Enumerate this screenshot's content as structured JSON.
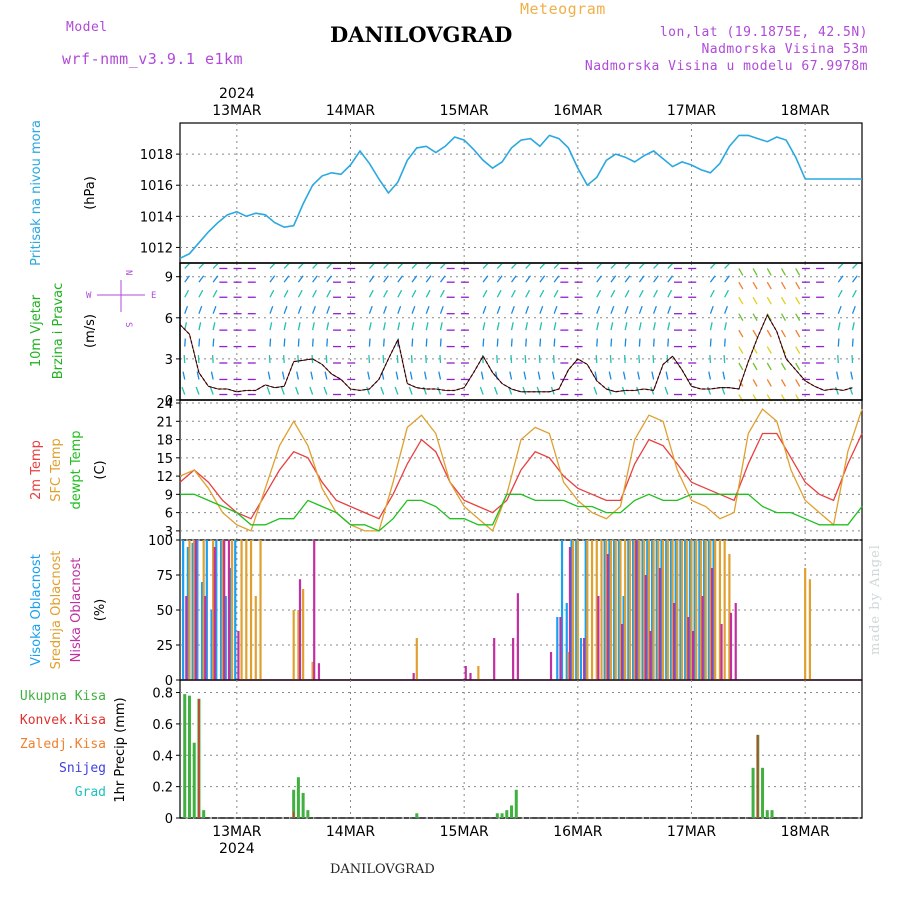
{
  "header": {
    "model_label": "Model",
    "model_name": "wrf-nmm_v3.9.1 e1km",
    "product": "Meteogram",
    "station": "DANILOVGRAD",
    "lonlat": "lon,lat (19.1875E, 42.5N)",
    "elevation": "Nadmorska Visina 53m",
    "model_elevation": "Nadmorska Visina u modelu 67.9978m"
  },
  "footer": {
    "station": "DANILOVGRAD",
    "signature": "made by Angel"
  },
  "colors": {
    "pressure": "#2aa8e0",
    "wind_speed_model": "#e03030",
    "wind_speed_alt": "#000000",
    "temp2m": "#e84040",
    "sfc_temp": "#e0a030",
    "dewpt": "#20c020",
    "cloud_high": "#1aa0f0",
    "cloud_mid": "#e0a030",
    "cloud_low": "#c030a0",
    "precip_total": "#40b040",
    "precip_conv": "#e03030",
    "precip_strat": "#f08030",
    "snow": "#4040e0",
    "hail": "#20c0c0"
  },
  "chart_data": [
    {
      "type": "line",
      "panel": "pressure",
      "ylabel_left": "Pritisak na nivou mora",
      "ylabel_unit": "(hPa)",
      "ylim": [
        1011,
        1020
      ],
      "yticks": [
        "1012",
        "1014",
        "1016",
        "1018"
      ],
      "xlim_hours": [
        0,
        144
      ],
      "xticks_top": [
        "13MAR",
        "14MAR",
        "15MAR",
        "16MAR",
        "17MAR",
        "18MAR"
      ],
      "year_top": "2024",
      "grid": true,
      "x": [
        0,
        2,
        4,
        6,
        8,
        10,
        12,
        14,
        16,
        18,
        20,
        22,
        24,
        26,
        28,
        30,
        32,
        34,
        36,
        38,
        40,
        42,
        44,
        46,
        48,
        50,
        52,
        54,
        56,
        58,
        60,
        62,
        64,
        66,
        68,
        70,
        72,
        74,
        76,
        78,
        80,
        82,
        84,
        86,
        88,
        90,
        92,
        94,
        96,
        98,
        100,
        102,
        104,
        106,
        108,
        110,
        112,
        114,
        116,
        118,
        120,
        122,
        124,
        126,
        128,
        130,
        132,
        134,
        136,
        138,
        140,
        142,
        144
      ],
      "series": [
        {
          "values": [
            1011.3,
            1011.6,
            1012.3,
            1013.0,
            1013.6,
            1014.1,
            1014.3,
            1014.0,
            1014.2,
            1014.1,
            1013.6,
            1013.3,
            1013.4,
            1014.8,
            1016.0,
            1016.6,
            1016.8,
            1016.7,
            1017.3,
            1018.2,
            1017.4,
            1016.4,
            1015.5,
            1016.2,
            1017.6,
            1018.4,
            1018.5,
            1018.1,
            1018.5,
            1019.1,
            1018.9,
            1018.3,
            1017.6,
            1017.1,
            1017.5,
            1018.4,
            1018.9,
            1019.0,
            1018.5,
            1019.2,
            1019.0,
            1018.4,
            1017.1,
            1016.0,
            1016.5,
            1017.6,
            1018.0,
            1017.8,
            1017.5,
            1017.9,
            1018.2,
            1017.7,
            1017.2,
            1017.5,
            1017.3,
            1017.0,
            1016.8,
            1017.4,
            1018.5,
            1019.2,
            1019.2,
            1019.0,
            1018.8,
            1019.1,
            1018.9,
            1017.8,
            1016.4,
            1016.4,
            1016.4,
            1016.4,
            1016.4,
            1016.4,
            1016.4
          ]
        }
      ]
    },
    {
      "type": "line",
      "panel": "wind",
      "ylabel_left": [
        "10m Vjetar",
        "Brzina i Pravac"
      ],
      "ylabel_unit": "(m/s)",
      "compass": {
        "n": "N",
        "s": "S",
        "w": "W",
        "e": "E"
      },
      "ylim": [
        0,
        10
      ],
      "yticks": [
        "0",
        "3",
        "6",
        "9"
      ],
      "grid": true,
      "x": [
        0,
        2,
        4,
        6,
        8,
        10,
        12,
        14,
        16,
        18,
        20,
        22,
        24,
        26,
        28,
        30,
        32,
        34,
        36,
        38,
        40,
        42,
        44,
        46,
        48,
        50,
        52,
        54,
        56,
        58,
        60,
        62,
        64,
        66,
        68,
        70,
        72,
        74,
        76,
        78,
        80,
        82,
        84,
        86,
        88,
        90,
        92,
        94,
        96,
        98,
        100,
        102,
        104,
        106,
        108,
        110,
        112,
        114,
        116,
        118,
        120,
        122,
        124,
        126,
        128,
        130,
        132,
        134,
        136,
        138,
        140,
        142
      ],
      "series": [
        {
          "values": [
            5.5,
            4.8,
            2.0,
            1.0,
            0.8,
            0.8,
            0.6,
            0.7,
            0.7,
            1.1,
            0.9,
            1.0,
            2.8,
            2.9,
            3.0,
            2.6,
            1.9,
            1.5,
            0.8,
            0.7,
            0.8,
            1.5,
            3.0,
            4.4,
            1.2,
            0.9,
            0.8,
            0.8,
            0.7,
            0.7,
            0.9,
            2.0,
            3.2,
            2.0,
            1.2,
            0.8,
            0.6,
            0.6,
            0.6,
            0.6,
            0.8,
            2.2,
            3.0,
            2.6,
            1.4,
            0.8,
            0.6,
            0.7,
            0.7,
            0.8,
            0.7,
            2.6,
            3.2,
            2.2,
            1.0,
            0.8,
            0.8,
            0.9,
            0.9,
            0.8,
            2.8,
            4.6,
            6.2,
            5.0,
            3.0,
            2.2,
            1.4,
            1.0,
            0.7,
            0.8,
            0.7,
            0.9
          ]
        }
      ]
    },
    {
      "type": "line",
      "panel": "temperature",
      "ylabel_left": [
        "2m Temp",
        "SFC Temp",
        "dewpt Temp"
      ],
      "ylabel_unit": "(C)",
      "ylim": [
        1.5,
        24.5
      ],
      "yticks": [
        "3",
        "6",
        "9",
        "12",
        "15",
        "18",
        "21",
        "24"
      ],
      "grid": true,
      "x": [
        0,
        3,
        6,
        9,
        12,
        15,
        18,
        21,
        24,
        27,
        30,
        33,
        36,
        39,
        42,
        45,
        48,
        51,
        54,
        57,
        60,
        63,
        66,
        69,
        72,
        75,
        78,
        81,
        84,
        87,
        90,
        93,
        96,
        99,
        102,
        105,
        108,
        111,
        114,
        117,
        120,
        123,
        126,
        129,
        132,
        135,
        138,
        141,
        144
      ],
      "series": [
        {
          "name": "2m Temp",
          "values": [
            11,
            13,
            11,
            8,
            6,
            5,
            9,
            13,
            16,
            15,
            11,
            8,
            7,
            6,
            5,
            9,
            14,
            18,
            16,
            11,
            8,
            7,
            6,
            8,
            13,
            16,
            15,
            12,
            10,
            9,
            8,
            8,
            14,
            18,
            17,
            14,
            11,
            10,
            9,
            8,
            14,
            19,
            19,
            15,
            11,
            9,
            8,
            14,
            19
          ]
        },
        {
          "name": "SFC Temp",
          "values": [
            12,
            13,
            10,
            6,
            4,
            3,
            10,
            17,
            21,
            17,
            10,
            6,
            4,
            3,
            3,
            11,
            20,
            22,
            19,
            11,
            7,
            5,
            3,
            9,
            18,
            20,
            19,
            11,
            8,
            6,
            5,
            7,
            18,
            22,
            21,
            13,
            8,
            7,
            5,
            6,
            19,
            23,
            21,
            13,
            8,
            6,
            4,
            16,
            23
          ]
        },
        {
          "name": "dewpt Temp",
          "values": [
            9,
            9,
            8,
            7,
            6,
            4,
            4,
            5,
            5,
            8,
            7,
            6,
            4,
            4,
            3,
            5,
            8,
            8,
            7,
            5,
            5,
            4,
            4,
            9,
            9,
            8,
            8,
            8,
            7,
            7,
            6,
            6,
            8,
            9,
            8,
            8,
            9,
            9,
            9,
            9,
            9,
            7,
            6,
            6,
            5,
            4,
            4,
            4,
            7
          ]
        }
      ]
    },
    {
      "type": "bar",
      "panel": "cloud",
      "ylabel_left": [
        "Visoka Oblacnost",
        "Srednja Oblacnost",
        "Niska Oblacnost"
      ],
      "ylabel_unit": "(%)",
      "ylim": [
        0,
        100
      ],
      "yticks": [
        "0",
        "25",
        "50",
        "75",
        "100"
      ],
      "grid": true,
      "series": [
        {
          "name": "Visoka Oblacnost",
          "x": [
            1,
            2,
            3,
            4,
            5,
            6,
            7,
            8,
            9,
            10,
            11,
            12,
            80,
            81,
            82,
            83,
            84,
            85,
            86,
            90,
            91,
            92,
            93,
            94,
            95,
            96,
            97,
            98,
            99,
            100,
            101,
            102,
            103,
            104,
            105,
            106,
            107,
            108,
            109,
            110,
            111,
            112,
            113
          ],
          "values": [
            100,
            95,
            98,
            100,
            70,
            100,
            50,
            100,
            100,
            60,
            80,
            100,
            45,
            100,
            55,
            100,
            100,
            30,
            100,
            100,
            100,
            100,
            100,
            60,
            100,
            100,
            100,
            100,
            100,
            100,
            100,
            100,
            100,
            100,
            100,
            100,
            100,
            100,
            100,
            100,
            100,
            100,
            100
          ]
        },
        {
          "name": "Srednja Oblacnost",
          "x": [
            2,
            3,
            5,
            7,
            9,
            11,
            13,
            14,
            15,
            16,
            17,
            24,
            25,
            26,
            28,
            50,
            63,
            82,
            83,
            84,
            86,
            87,
            88,
            89,
            90,
            91,
            92,
            93,
            94,
            95,
            96,
            97,
            98,
            99,
            100,
            101,
            102,
            103,
            104,
            105,
            106,
            107,
            108,
            109,
            110,
            111,
            112,
            113,
            114,
            115,
            116,
            132,
            133
          ],
          "values": [
            100,
            100,
            100,
            100,
            100,
            100,
            100,
            100,
            100,
            60,
            100,
            50,
            50,
            65,
            13,
            30,
            10,
            20,
            100,
            100,
            100,
            100,
            100,
            100,
            100,
            100,
            100,
            100,
            100,
            100,
            100,
            100,
            100,
            100,
            100,
            100,
            100,
            100,
            100,
            100,
            100,
            100,
            100,
            100,
            100,
            100,
            100,
            100,
            100,
            100,
            90,
            80,
            72
          ]
        },
        {
          "name": "Niska Oblacnost",
          "x": [
            1,
            3,
            5,
            7,
            9,
            10,
            12,
            25,
            28,
            29,
            49,
            60,
            61,
            66,
            70,
            71,
            78,
            80,
            82,
            85,
            88,
            90,
            93,
            96,
            98,
            99,
            101,
            104,
            107,
            108,
            110,
            112,
            114,
            116,
            117
          ],
          "values": [
            60,
            100,
            60,
            95,
            100,
            100,
            35,
            72,
            100,
            12,
            5,
            10,
            5,
            30,
            30,
            62,
            20,
            45,
            95,
            30,
            60,
            90,
            40,
            100,
            75,
            35,
            80,
            55,
            45,
            35,
            60,
            80,
            40,
            48,
            55
          ]
        }
      ]
    },
    {
      "type": "bar",
      "panel": "precipitation",
      "ylabel_left": [
        "Ukupna Kisa",
        "Konvek.Kisa",
        "Zaledj.Kisa",
        "Snijeg",
        "Grad"
      ],
      "ylabel_unit": "1hr Precip (mm)",
      "ylim": [
        0,
        0.88
      ],
      "yticks": [
        "0",
        "0.2",
        "0.4",
        "0.6",
        "0.8"
      ],
      "xticks_bottom": [
        "13MAR",
        "14MAR",
        "15MAR",
        "16MAR",
        "17MAR",
        "18MAR"
      ],
      "year_bottom": "2024",
      "grid": true,
      "series": [
        {
          "name": "Ukupna Kisa",
          "x": [
            1,
            2,
            3,
            4,
            5,
            24,
            25,
            26,
            27,
            50,
            67,
            68,
            69,
            70,
            71,
            121,
            122,
            123,
            124,
            125
          ],
          "values": [
            0.79,
            0.78,
            0.48,
            0.76,
            0.05,
            0.18,
            0.26,
            0.16,
            0.05,
            0.03,
            0.03,
            0.03,
            0.05,
            0.08,
            0.18,
            0.32,
            0.53,
            0.32,
            0.05,
            0.05
          ]
        },
        {
          "name": "Konvek.Kisa",
          "x": [
            4,
            24,
            122
          ],
          "values": [
            0.76,
            0.04,
            0.53
          ]
        }
      ]
    }
  ]
}
